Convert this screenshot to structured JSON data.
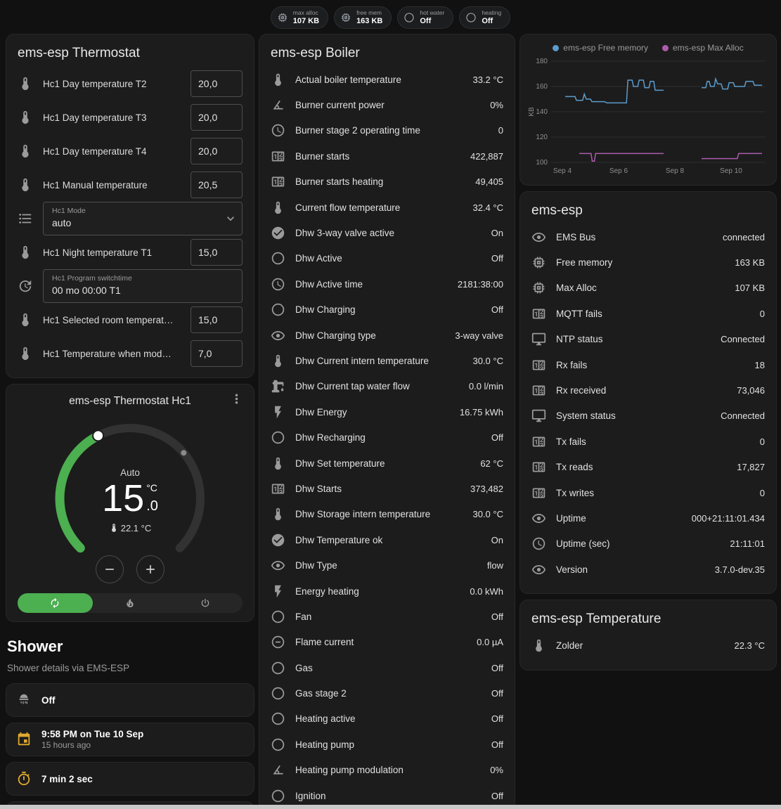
{
  "topbar": {
    "chips": [
      {
        "icon": "memory",
        "label": "max alloc",
        "value": "107 KB"
      },
      {
        "icon": "memory",
        "label": "free mem",
        "value": "163 KB"
      },
      {
        "icon": "circle",
        "label": "hot water",
        "value": "Off"
      },
      {
        "icon": "circle",
        "label": "heating",
        "value": "Off"
      }
    ]
  },
  "thermostat_card": {
    "title": "ems-esp Thermostat",
    "rows": [
      {
        "type": "number",
        "icon": "thermometer",
        "label": "Hc1 Day temperature T2",
        "value": "20,0"
      },
      {
        "type": "number",
        "icon": "thermometer",
        "label": "Hc1 Day temperature T3",
        "value": "20,0"
      },
      {
        "type": "number",
        "icon": "thermometer",
        "label": "Hc1 Day temperature T4",
        "value": "20,0"
      },
      {
        "type": "number",
        "icon": "thermometer",
        "label": "Hc1 Manual temperature",
        "value": "20,5"
      },
      {
        "type": "select",
        "icon": "list",
        "label": "Hc1 Mode",
        "value": "auto"
      },
      {
        "type": "number",
        "icon": "thermometer",
        "label": "Hc1 Night temperature T1",
        "value": "15,0"
      },
      {
        "type": "text",
        "icon": "clock-edit",
        "label": "Hc1 Program switchtime",
        "value": "00 mo 00:00 T1"
      },
      {
        "type": "number",
        "icon": "thermometer",
        "label": "Hc1 Selected room temperat…",
        "value": "15,0"
      },
      {
        "type": "number",
        "icon": "thermometer",
        "label": "Hc1 Temperature when mod…",
        "value": "7,0"
      }
    ]
  },
  "dial_card": {
    "title": "ems-esp Thermostat Hc1",
    "mode_label": "Auto",
    "target_main": "15",
    "target_decimal": ".0",
    "unit": "°C",
    "current": "22.1 °C",
    "accent_green": "#4caf50",
    "buttons": [
      {
        "icon": "autorenew",
        "mod": "active"
      },
      {
        "icon": "fire",
        "mod": ""
      },
      {
        "icon": "power",
        "mod": ""
      }
    ]
  },
  "shower": {
    "title": "Shower",
    "subtitle": "Shower details via EMS-ESP",
    "cards": [
      {
        "icon": "shower",
        "color": "",
        "value": "Off",
        "sub": "",
        "mod": ""
      },
      {
        "icon": "calendar",
        "color": "amber",
        "value": "9:58 PM on Tue 10 Sep",
        "sub": "15 hours ago",
        "mod": ""
      },
      {
        "icon": "timer",
        "color": "amber",
        "value": "7 min 2 sec",
        "sub": "",
        "mod": ""
      },
      {
        "icon": "snowflake",
        "color": "blue",
        "value": "",
        "sub": "",
        "mod": "partial"
      }
    ]
  },
  "boiler_card": {
    "title": "ems-esp Boiler",
    "rows": [
      {
        "icon": "thermometer",
        "label": "Actual boiler temperature",
        "value": "33.2 °C"
      },
      {
        "icon": "angle",
        "label": "Burner current power",
        "value": "0%"
      },
      {
        "icon": "clock",
        "label": "Burner stage 2 operating time",
        "value": "0"
      },
      {
        "icon": "counter",
        "label": "Burner starts",
        "value": "422,887"
      },
      {
        "icon": "counter",
        "label": "Burner starts heating",
        "value": "49,405"
      },
      {
        "icon": "thermometer",
        "label": "Current flow temperature",
        "value": "32.4 °C"
      },
      {
        "icon": "check-circle",
        "label": "Dhw 3-way valve active",
        "value": "On"
      },
      {
        "icon": "circle",
        "label": "Dhw Active",
        "value": "Off"
      },
      {
        "icon": "clock",
        "label": "Dhw Active time",
        "value": "2181:38:00"
      },
      {
        "icon": "circle",
        "label": "Dhw Charging",
        "value": "Off"
      },
      {
        "icon": "eye",
        "label": "Dhw Charging type",
        "value": "3-way valve"
      },
      {
        "icon": "thermometer",
        "label": "Dhw Current intern temperature",
        "value": "30.0 °C"
      },
      {
        "icon": "water-pump",
        "label": "Dhw Current tap water flow",
        "value": "0.0 l/min"
      },
      {
        "icon": "flash",
        "label": "Dhw Energy",
        "value": "16.75 kWh"
      },
      {
        "icon": "circle",
        "label": "Dhw Recharging",
        "value": "Off"
      },
      {
        "icon": "thermometer",
        "label": "Dhw Set temperature",
        "value": "62 °C"
      },
      {
        "icon": "counter",
        "label": "Dhw Starts",
        "value": "373,482"
      },
      {
        "icon": "thermometer",
        "label": "Dhw Storage intern temperature",
        "value": "30.0 °C"
      },
      {
        "icon": "check-circle",
        "label": "Dhw Temperature ok",
        "value": "On"
      },
      {
        "icon": "eye",
        "label": "Dhw Type",
        "value": "flow"
      },
      {
        "icon": "flash",
        "label": "Energy heating",
        "value": "0.0 kWh"
      },
      {
        "icon": "circle",
        "label": "Fan",
        "value": "Off"
      },
      {
        "icon": "current",
        "label": "Flame current",
        "value": "0.0 µA"
      },
      {
        "icon": "circle",
        "label": "Gas",
        "value": "Off"
      },
      {
        "icon": "circle",
        "label": "Gas stage 2",
        "value": "Off"
      },
      {
        "icon": "circle",
        "label": "Heating active",
        "value": "Off"
      },
      {
        "icon": "circle",
        "label": "Heating pump",
        "value": "Off"
      },
      {
        "icon": "angle",
        "label": "Heating pump modulation",
        "value": "0%"
      },
      {
        "icon": "circle",
        "label": "Ignition",
        "value": "Off"
      }
    ]
  },
  "emsesp_card": {
    "title": "ems-esp",
    "rows": [
      {
        "icon": "eye",
        "label": "EMS Bus",
        "value": "connected"
      },
      {
        "icon": "memory",
        "label": "Free memory",
        "value": "163 KB"
      },
      {
        "icon": "memory",
        "label": "Max Alloc",
        "value": "107 KB"
      },
      {
        "icon": "counter",
        "label": "MQTT fails",
        "value": "0"
      },
      {
        "icon": "monitor",
        "label": "NTP status",
        "value": "Connected"
      },
      {
        "icon": "counter",
        "label": "Rx fails",
        "value": "18"
      },
      {
        "icon": "counter",
        "label": "Rx received",
        "value": "73,046"
      },
      {
        "icon": "monitor",
        "label": "System status",
        "value": "Connected"
      },
      {
        "icon": "counter",
        "label": "Tx fails",
        "value": "0"
      },
      {
        "icon": "counter",
        "label": "Tx reads",
        "value": "17,827"
      },
      {
        "icon": "counter",
        "label": "Tx writes",
        "value": "0"
      },
      {
        "icon": "eye",
        "label": "Uptime",
        "value": "000+21:11:01.434"
      },
      {
        "icon": "clock",
        "label": "Uptime (sec)",
        "value": "21:11:01"
      },
      {
        "icon": "eye",
        "label": "Version",
        "value": "3.7.0-dev.35"
      }
    ]
  },
  "temperature_card": {
    "title": "ems-esp Temperature",
    "rows": [
      {
        "icon": "thermometer",
        "label": "Zolder",
        "value": "22.3 °C"
      }
    ]
  },
  "chart_data": {
    "type": "line",
    "title": "",
    "xlabel": "",
    "ylabel": "KB",
    "ylim": [
      100,
      180
    ],
    "yticks": [
      100,
      120,
      140,
      160,
      180
    ],
    "xlim": [
      3.6,
      11.2
    ],
    "xticks": [
      {
        "x": 4,
        "label": "Sep 4"
      },
      {
        "x": 6,
        "label": "Sep 6"
      },
      {
        "x": 8,
        "label": "Sep 8"
      },
      {
        "x": 10,
        "label": "Sep 10"
      }
    ],
    "grid": true,
    "legend_position": "top",
    "series": [
      {
        "name": "ems-esp Free memory",
        "unit": "KB",
        "color": "#5c9ccc",
        "segments": [
          [
            [
              4.1,
              152
            ],
            [
              4.45,
              152
            ],
            [
              4.5,
              149
            ],
            [
              4.72,
              149
            ],
            [
              4.78,
              154
            ],
            [
              4.85,
              150
            ],
            [
              5.0,
              150
            ],
            [
              5.05,
              148
            ],
            [
              5.5,
              148
            ],
            [
              5.58,
              147
            ],
            [
              6.28,
              147
            ],
            [
              6.33,
              165
            ],
            [
              6.48,
              165
            ],
            [
              6.53,
              160
            ],
            [
              6.68,
              160
            ],
            [
              6.73,
              165
            ],
            [
              6.88,
              165
            ],
            [
              6.93,
              159
            ],
            [
              7.08,
              159
            ],
            [
              7.13,
              164
            ],
            [
              7.25,
              164
            ],
            [
              7.3,
              157
            ],
            [
              7.6,
              157
            ]
          ],
          [
            [
              8.95,
              159
            ],
            [
              9.1,
              159
            ],
            [
              9.15,
              164
            ],
            [
              9.22,
              164
            ],
            [
              9.27,
              160
            ],
            [
              9.4,
              160
            ],
            [
              9.45,
              166
            ],
            [
              9.52,
              162
            ],
            [
              9.65,
              162
            ],
            [
              9.7,
              158
            ],
            [
              9.88,
              158
            ],
            [
              9.93,
              163
            ],
            [
              10.08,
              163
            ],
            [
              10.13,
              160
            ],
            [
              10.48,
              160
            ],
            [
              10.53,
              164
            ],
            [
              10.78,
              164
            ],
            [
              10.83,
              161
            ],
            [
              11.1,
              161
            ]
          ]
        ]
      },
      {
        "name": "ems-esp Max Alloc",
        "unit": "KB",
        "color": "#ad5cad",
        "segments": [
          [
            [
              4.6,
              107
            ],
            [
              5.02,
              107
            ],
            [
              5.06,
              101
            ],
            [
              5.14,
              101
            ],
            [
              5.18,
              107
            ],
            [
              7.6,
              107
            ]
          ],
          [
            [
              8.95,
              103
            ],
            [
              10.22,
              103
            ],
            [
              10.27,
              107
            ],
            [
              11.1,
              107
            ]
          ]
        ]
      }
    ]
  }
}
